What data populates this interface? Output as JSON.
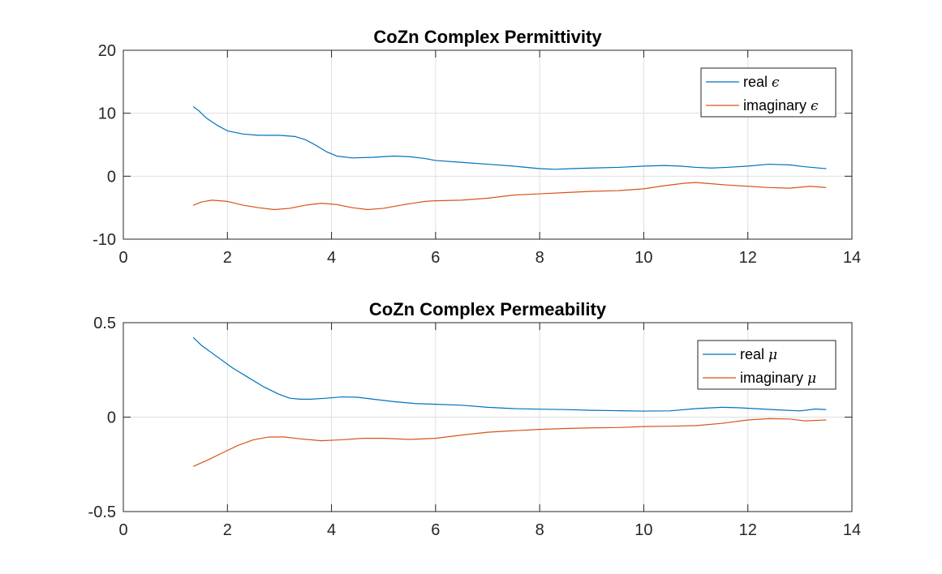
{
  "chart_data": [
    {
      "type": "line",
      "title": "CoZn Complex Permittivity",
      "xlabel": "",
      "ylabel": "",
      "xlim": [
        0,
        14
      ],
      "ylim": [
        -10,
        20
      ],
      "xticks": [
        "0",
        "2",
        "4",
        "6",
        "8",
        "10",
        "12",
        "14"
      ],
      "yticks": [
        "-10",
        "0",
        "10",
        "20"
      ],
      "grid": true,
      "legend_position": "top-right",
      "series": [
        {
          "name": "real",
          "symbol": "ϵ",
          "color": "#0072BD",
          "x": [
            1.35,
            1.45,
            1.6,
            1.8,
            2.0,
            2.3,
            2.6,
            3.0,
            3.3,
            3.5,
            3.7,
            3.9,
            4.1,
            4.4,
            4.8,
            5.2,
            5.5,
            5.8,
            6.0,
            6.5,
            7.0,
            7.5,
            8.0,
            8.3,
            8.6,
            9.0,
            9.5,
            10.0,
            10.4,
            10.7,
            11.0,
            11.3,
            11.6,
            12.0,
            12.4,
            12.8,
            13.1,
            13.5
          ],
          "y": [
            11.0,
            10.4,
            9.2,
            8.1,
            7.2,
            6.7,
            6.5,
            6.5,
            6.3,
            5.8,
            4.9,
            3.9,
            3.2,
            2.9,
            3.0,
            3.2,
            3.1,
            2.8,
            2.5,
            2.2,
            1.9,
            1.6,
            1.2,
            1.1,
            1.2,
            1.3,
            1.4,
            1.6,
            1.7,
            1.6,
            1.4,
            1.3,
            1.4,
            1.6,
            1.9,
            1.8,
            1.5,
            1.2
          ]
        },
        {
          "name": "imaginary",
          "symbol": "ϵ",
          "color": "#D95319",
          "x": [
            1.35,
            1.5,
            1.7,
            2.0,
            2.3,
            2.6,
            2.9,
            3.2,
            3.5,
            3.8,
            4.1,
            4.4,
            4.7,
            5.0,
            5.4,
            5.8,
            6.0,
            6.5,
            7.0,
            7.5,
            8.0,
            8.5,
            9.0,
            9.5,
            10.0,
            10.4,
            10.8,
            11.0,
            11.3,
            11.6,
            12.0,
            12.4,
            12.8,
            13.2,
            13.5
          ],
          "y": [
            -4.6,
            -4.1,
            -3.8,
            -4.0,
            -4.6,
            -5.0,
            -5.3,
            -5.1,
            -4.6,
            -4.3,
            -4.5,
            -5.0,
            -5.3,
            -5.1,
            -4.5,
            -4.0,
            -3.9,
            -3.8,
            -3.5,
            -3.0,
            -2.8,
            -2.6,
            -2.4,
            -2.3,
            -2.0,
            -1.5,
            -1.1,
            -1.0,
            -1.2,
            -1.4,
            -1.6,
            -1.8,
            -1.9,
            -1.6,
            -1.8
          ]
        }
      ]
    },
    {
      "type": "line",
      "title": "CoZn Complex Permeability",
      "xlabel": "",
      "ylabel": "",
      "xlim": [
        0,
        14
      ],
      "ylim": [
        -0.5,
        0.5
      ],
      "xticks": [
        "0",
        "2",
        "4",
        "6",
        "8",
        "10",
        "12",
        "14"
      ],
      "yticks": [
        "-0.5",
        "0",
        "0.5"
      ],
      "grid": true,
      "legend_position": "top-right",
      "series": [
        {
          "name": "real",
          "symbol": "μ",
          "color": "#0072BD",
          "x": [
            1.35,
            1.5,
            1.8,
            2.1,
            2.4,
            2.7,
            3.0,
            3.2,
            3.4,
            3.6,
            3.9,
            4.2,
            4.5,
            4.8,
            5.2,
            5.6,
            6.0,
            6.5,
            7.0,
            7.5,
            8.0,
            8.5,
            9.0,
            9.5,
            10.0,
            10.5,
            11.0,
            11.5,
            11.8,
            12.2,
            12.6,
            13.0,
            13.3,
            13.5
          ],
          "y": [
            0.42,
            0.38,
            0.32,
            0.26,
            0.21,
            0.16,
            0.12,
            0.1,
            0.095,
            0.095,
            0.1,
            0.107,
            0.105,
            0.095,
            0.082,
            0.072,
            0.068,
            0.063,
            0.052,
            0.045,
            0.042,
            0.04,
            0.036,
            0.034,
            0.032,
            0.033,
            0.045,
            0.052,
            0.05,
            0.044,
            0.038,
            0.033,
            0.043,
            0.04
          ]
        },
        {
          "name": "imaginary",
          "symbol": "μ",
          "color": "#D95319",
          "x": [
            1.35,
            1.6,
            1.9,
            2.2,
            2.5,
            2.8,
            3.1,
            3.4,
            3.8,
            4.2,
            4.6,
            5.0,
            5.5,
            6.0,
            6.5,
            7.0,
            7.5,
            8.0,
            8.5,
            9.0,
            9.5,
            10.0,
            10.5,
            11.0,
            11.5,
            12.0,
            12.4,
            12.8,
            13.1,
            13.5
          ],
          "y": [
            -0.26,
            -0.23,
            -0.19,
            -0.15,
            -0.12,
            -0.105,
            -0.105,
            -0.115,
            -0.125,
            -0.12,
            -0.112,
            -0.112,
            -0.118,
            -0.112,
            -0.095,
            -0.08,
            -0.072,
            -0.065,
            -0.06,
            -0.057,
            -0.055,
            -0.05,
            -0.048,
            -0.045,
            -0.033,
            -0.015,
            -0.008,
            -0.01,
            -0.02,
            -0.015
          ]
        }
      ]
    }
  ]
}
